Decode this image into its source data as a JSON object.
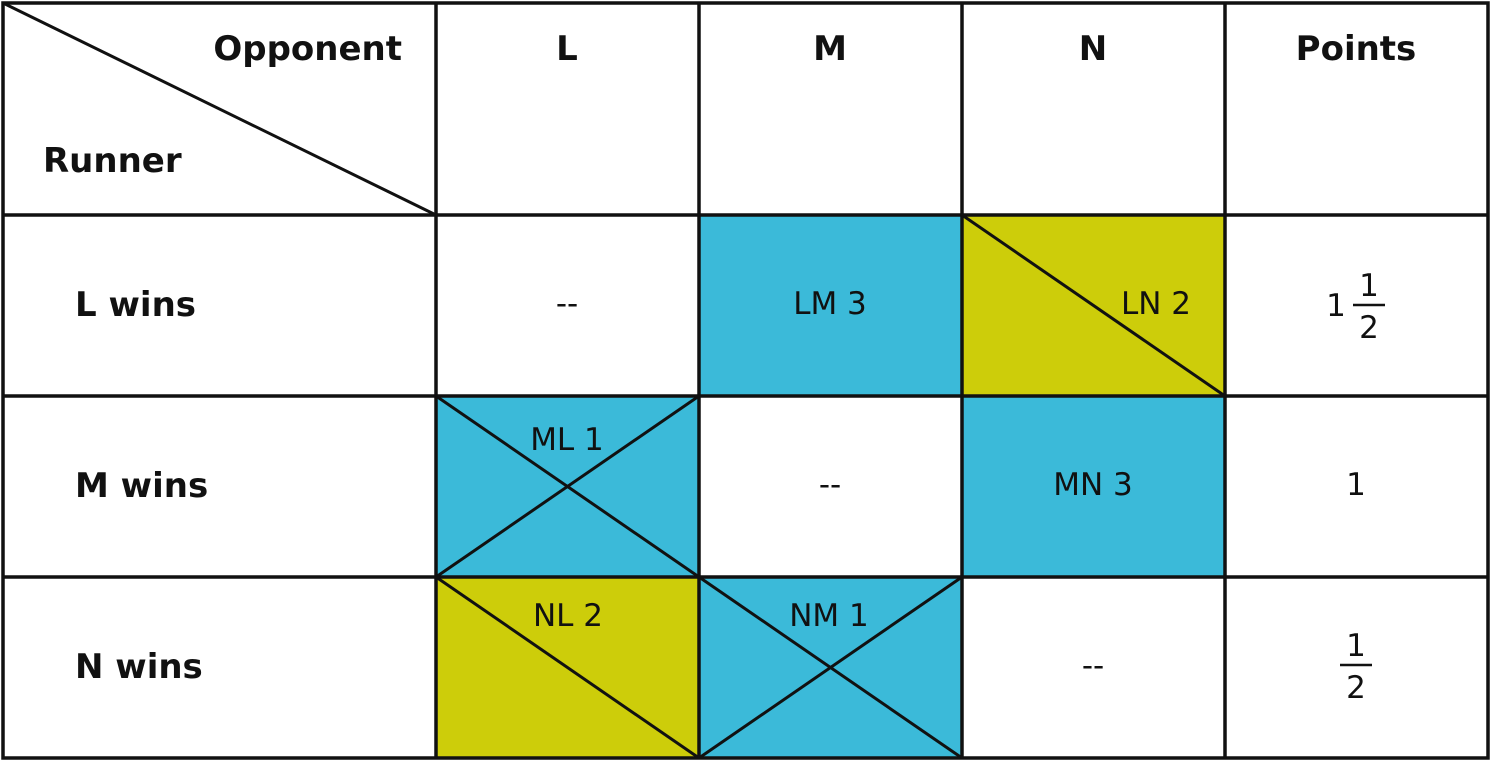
{
  "colors": {
    "blue": "#3bbad9",
    "yellow": "#cdcd0a",
    "grid": "#111111"
  },
  "header": {
    "corner_top": "Opponent",
    "corner_bottom": "Runner",
    "columns": [
      "L",
      "M",
      "N"
    ],
    "points": "Points"
  },
  "rows": [
    {
      "label": "L wins",
      "cells": [
        "--",
        "LM 3",
        "LN 2"
      ],
      "points": {
        "whole": "1",
        "num": "1",
        "den": "2"
      }
    },
    {
      "label": "M wins",
      "cells": [
        "ML 1",
        "--",
        "MN 3"
      ],
      "points": {
        "whole": "1"
      }
    },
    {
      "label": "N wins",
      "cells": [
        "NL 2",
        "NM 1",
        "--"
      ],
      "points": {
        "num": "1",
        "den": "2"
      }
    }
  ]
}
